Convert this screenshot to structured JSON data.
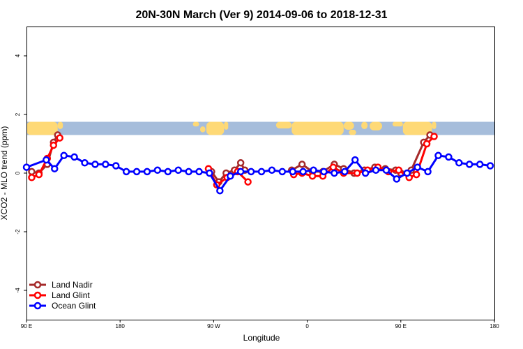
{
  "chart_data": {
    "type": "line",
    "title": "20N-30N March (Ver 9)   2014-09-06 to 2018-12-31",
    "xlabel": "Longitude",
    "ylabel": "XCO2 - MLO trend (ppm)",
    "xlim": [
      90,
      540
    ],
    "ylim": [
      -5,
      5
    ],
    "x_ticks": [
      {
        "value": 90,
        "label": "90 E"
      },
      {
        "value": 180,
        "label": "180"
      },
      {
        "value": 270,
        "label": "90 W"
      },
      {
        "value": 360,
        "label": "0"
      },
      {
        "value": 450,
        "label": "90 E"
      },
      {
        "value": 540,
        "label": "180"
      }
    ],
    "y_ticks": [
      {
        "value": 4,
        "label": "4"
      },
      {
        "value": 2,
        "label": "2"
      },
      {
        "value": 0,
        "label": "0"
      },
      {
        "value": -2,
        "label": "-2"
      },
      {
        "value": -4,
        "label": "-4"
      }
    ],
    "map_band": {
      "lon_start": 90,
      "lon_end": 540,
      "lat_min": 20,
      "lat_max": 30,
      "y_bottom": 1.3,
      "y_top": 1.75,
      "ocean_color": "#a6bddb",
      "land_color": "#fed976"
    },
    "legend": {
      "position": "bottom-left"
    },
    "series": [
      {
        "name": "Land Nadir",
        "color": "#a52a2a",
        "segments": [
          [
            [
              95,
              0.05
            ],
            [
              102,
              0.0
            ],
            [
              110,
              0.3
            ],
            [
              116,
              1.05
            ],
            [
              120,
              1.3
            ]
          ],
          [
            [
              268,
              0.05
            ],
            [
              275,
              -0.3
            ],
            [
              282,
              0.0
            ],
            [
              290,
              0.1
            ],
            [
              296,
              0.35
            ],
            [
              300,
              0.1
            ]
          ],
          [
            [
              345,
              0.1
            ],
            [
              355,
              0.3
            ],
            [
              365,
              0.05
            ],
            [
              375,
              0.05
            ],
            [
              386,
              0.3
            ],
            [
              395,
              0.15
            ],
            [
              405,
              0.0
            ],
            [
              415,
              0.1
            ],
            [
              425,
              0.2
            ],
            [
              435,
              0.15
            ],
            [
              445,
              0.1
            ],
            [
              450,
              0.0
            ],
            [
              460,
              0.1
            ],
            [
              472,
              1.05
            ],
            [
              478,
              1.3
            ]
          ]
        ]
      },
      {
        "name": "Land Glint",
        "color": "#ff0000",
        "segments": [
          [
            [
              95,
              -0.15
            ],
            [
              102,
              -0.05
            ],
            [
              110,
              0.5
            ],
            [
              116,
              0.95
            ],
            [
              122,
              1.2
            ]
          ],
          [
            [
              265,
              0.15
            ],
            [
              273,
              -0.4
            ],
            [
              283,
              -0.15
            ],
            [
              293,
              0.05
            ],
            [
              303,
              -0.3
            ]
          ],
          [
            [
              347,
              -0.05
            ],
            [
              355,
              0.0
            ],
            [
              365,
              -0.1
            ],
            [
              375,
              -0.1
            ],
            [
              385,
              0.2
            ],
            [
              395,
              0.0
            ],
            [
              408,
              0.0
            ],
            [
              418,
              0.1
            ],
            [
              428,
              0.2
            ],
            [
              438,
              0.05
            ],
            [
              448,
              0.1
            ],
            [
              458,
              -0.15
            ],
            [
              465,
              -0.05
            ],
            [
              475,
              1.0
            ],
            [
              482,
              1.25
            ]
          ]
        ]
      },
      {
        "name": "Ocean Glint",
        "color": "#0000ff",
        "segments": [
          [
            [
              90,
              0.2
            ],
            [
              109,
              0.45
            ],
            [
              117,
              0.15
            ],
            [
              126,
              0.6
            ],
            [
              136,
              0.55
            ],
            [
              146,
              0.35
            ],
            [
              156,
              0.3
            ],
            [
              166,
              0.3
            ],
            [
              176,
              0.25
            ],
            [
              186,
              0.05
            ],
            [
              196,
              0.05
            ],
            [
              206,
              0.05
            ],
            [
              216,
              0.1
            ],
            [
              226,
              0.05
            ],
            [
              236,
              0.1
            ],
            [
              246,
              0.05
            ],
            [
              256,
              0.05
            ],
            [
              266,
              0.0
            ],
            [
              276,
              -0.6
            ],
            [
              286,
              -0.1
            ],
            [
              296,
              0.05
            ],
            [
              306,
              0.05
            ],
            [
              316,
              0.05
            ],
            [
              326,
              0.1
            ],
            [
              336,
              0.05
            ],
            [
              346,
              0.05
            ],
            [
              356,
              0.05
            ],
            [
              366,
              0.1
            ],
            [
              376,
              0.05
            ],
            [
              386,
              0.0
            ],
            [
              396,
              0.05
            ],
            [
              406,
              0.45
            ],
            [
              416,
              0.0
            ],
            [
              426,
              0.1
            ],
            [
              436,
              0.1
            ],
            [
              446,
              -0.2
            ],
            [
              456,
              0.0
            ],
            [
              466,
              0.2
            ],
            [
              476,
              0.05
            ],
            [
              486,
              0.6
            ],
            [
              496,
              0.55
            ],
            [
              506,
              0.35
            ],
            [
              516,
              0.3
            ],
            [
              526,
              0.3
            ],
            [
              536,
              0.25
            ]
          ]
        ]
      }
    ]
  }
}
